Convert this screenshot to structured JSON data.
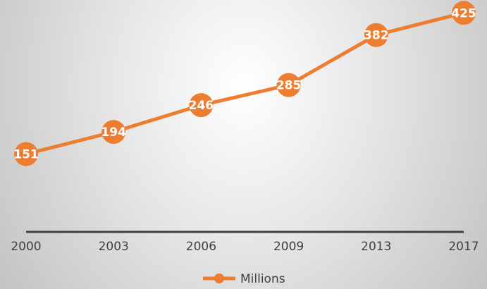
{
  "chart_data": {
    "type": "line",
    "title": "",
    "xlabel": "",
    "ylabel": "",
    "categories": [
      "2000",
      "2003",
      "2006",
      "2009",
      "2013",
      "2017"
    ],
    "series": [
      {
        "name": "Millions",
        "values": [
          151,
          194,
          246,
          285,
          382,
          425
        ],
        "color": "#ED7D31"
      }
    ],
    "ylim": [
      0,
      450
    ],
    "grid": false,
    "legend": "bottom",
    "data_labels": true,
    "axis_color": "#404040"
  }
}
